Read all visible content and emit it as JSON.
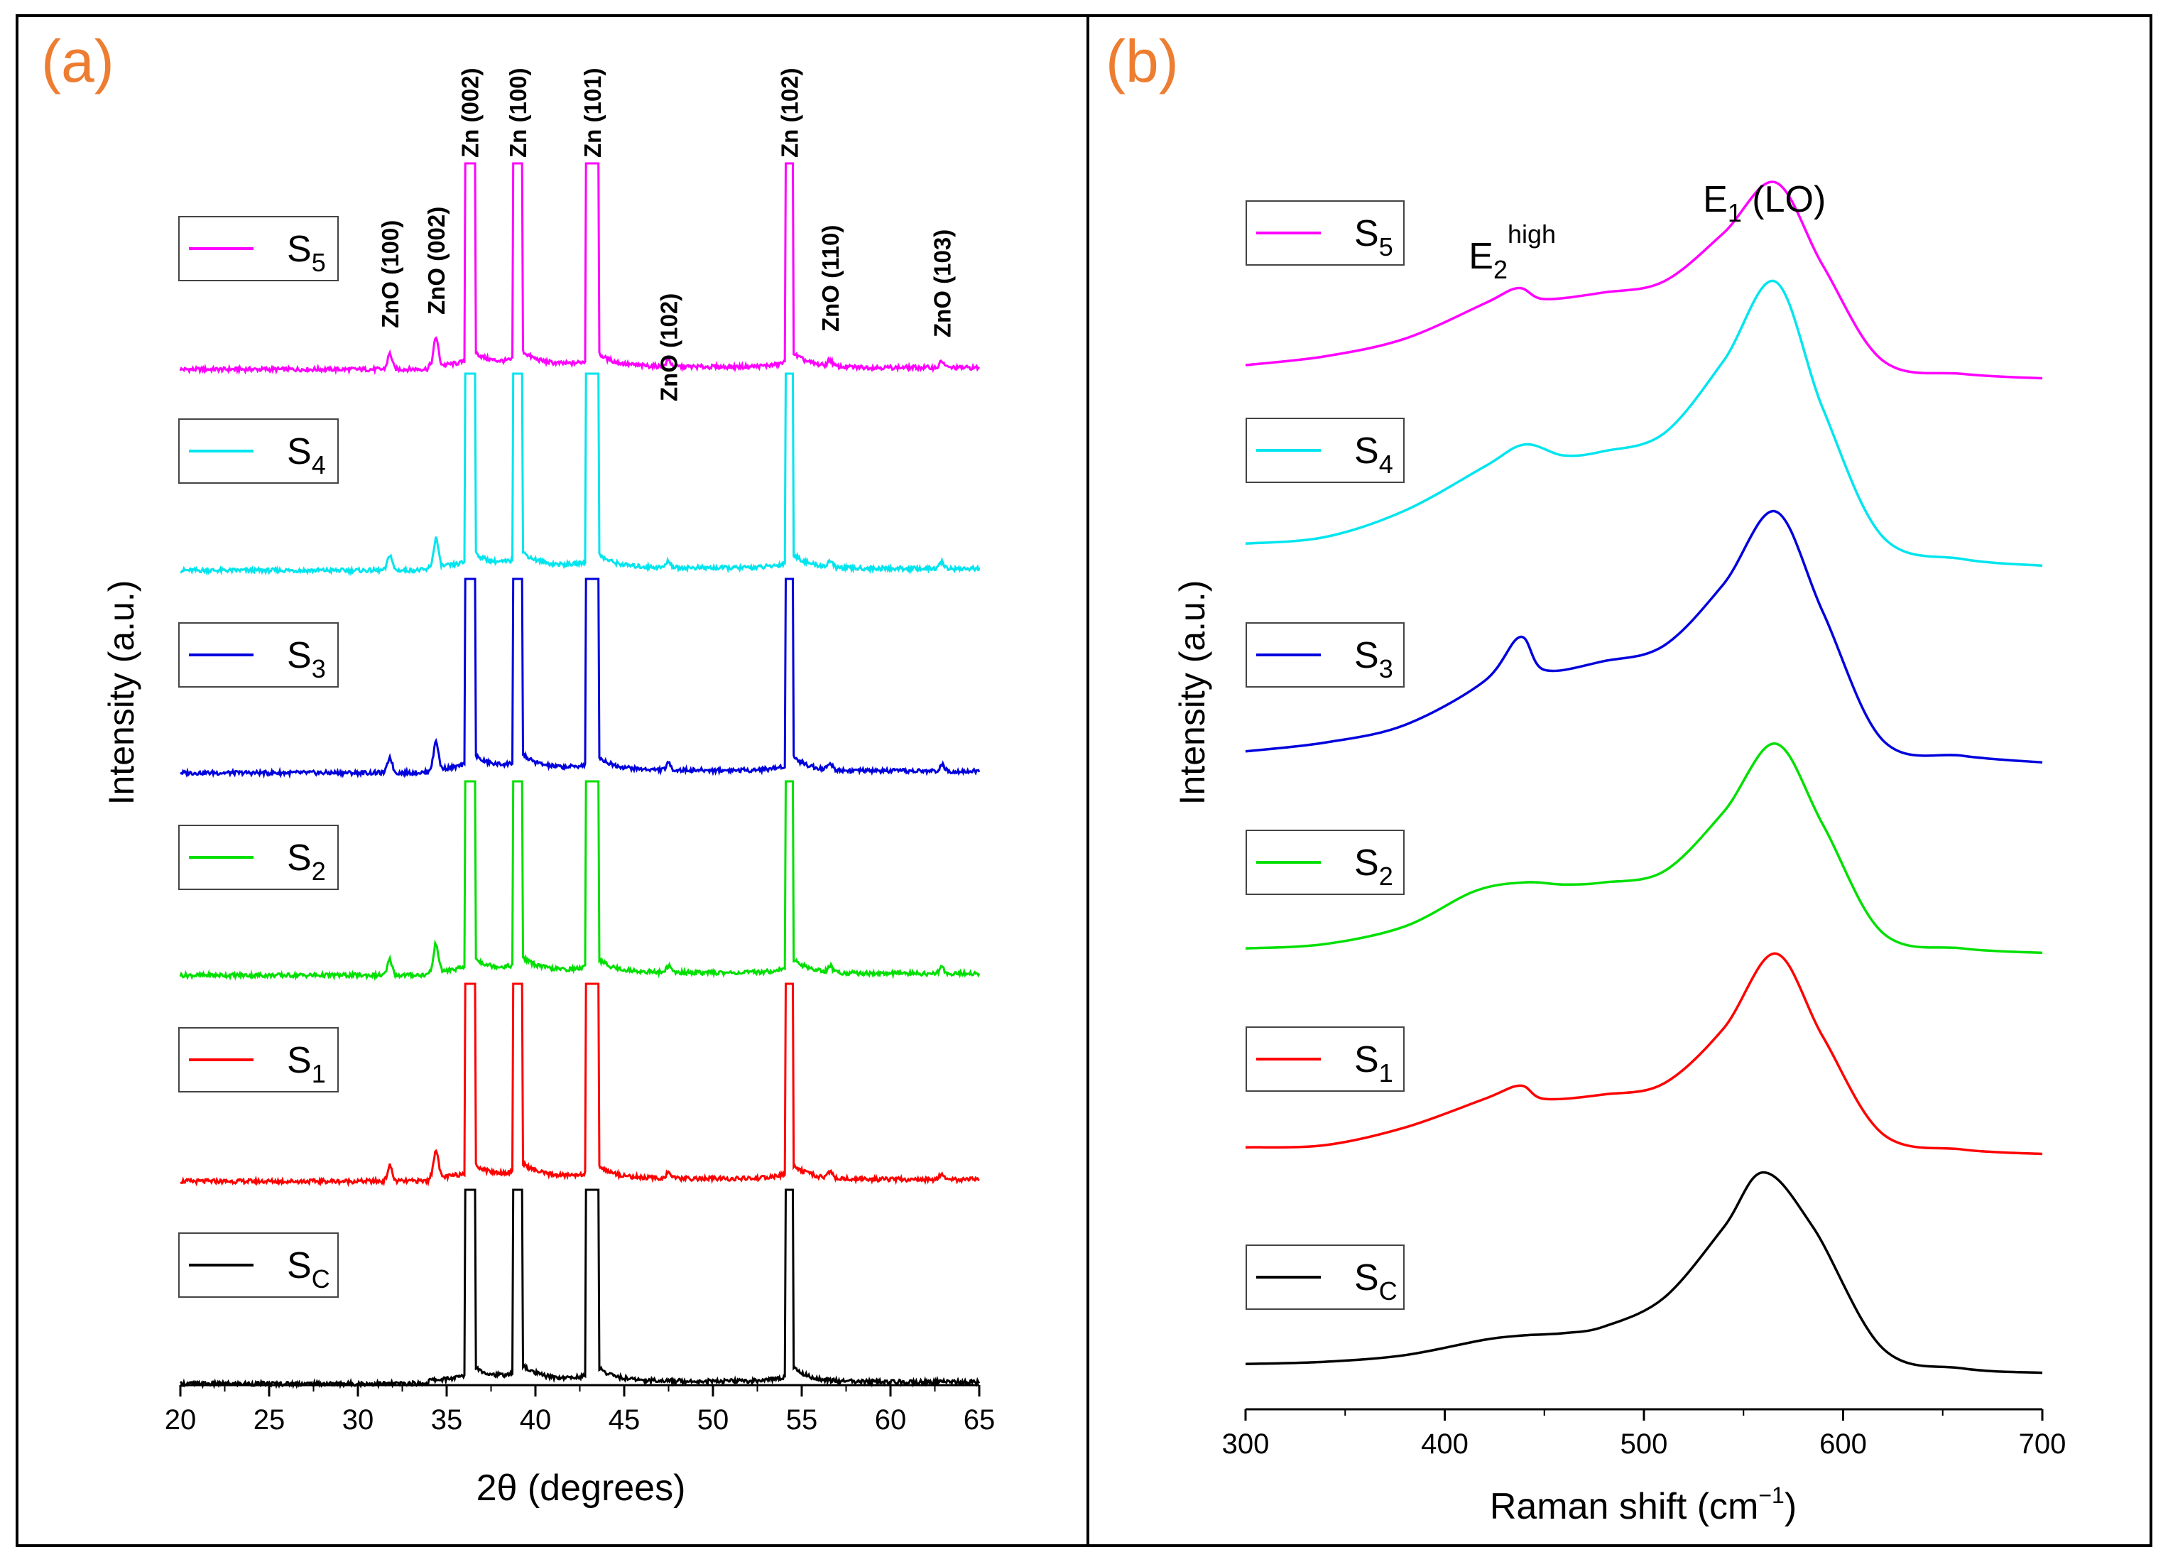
{
  "colors": {
    "S5": "#ff00ff",
    "S4": "#00e5ee",
    "S3": "#0000dd",
    "S2": "#00e000",
    "S1": "#ff0000",
    "SC": "#000000",
    "panel_label": "#ed7d31"
  },
  "chart_data": [
    {
      "type": "line",
      "panel_label": "(a)",
      "title": "",
      "xlabel": "2θ (degrees)",
      "ylabel": "Intensity (a.u.)",
      "xlim": [
        20,
        65
      ],
      "xticks": [
        "20",
        "25",
        "30",
        "35",
        "40",
        "45",
        "50",
        "55",
        "60",
        "65"
      ],
      "yticks": [],
      "grid": false,
      "legend_placement": "left of each trace",
      "series": [
        {
          "key": "S5",
          "name": "S",
          "sub": "5"
        },
        {
          "key": "S4",
          "name": "S",
          "sub": "4"
        },
        {
          "key": "S3",
          "name": "S",
          "sub": "3"
        },
        {
          "key": "S2",
          "name": "S",
          "sub": "2"
        },
        {
          "key": "S1",
          "name": "S",
          "sub": "1"
        },
        {
          "key": "SC",
          "name": "S",
          "sub": "C"
        }
      ],
      "peaks": [
        {
          "label": "ZnO (100)",
          "x": 31.8,
          "type": "ZnO"
        },
        {
          "label": "ZnO (002)",
          "x": 34.4,
          "type": "ZnO"
        },
        {
          "label": "Zn (002)",
          "x": 36.3,
          "type": "Zn"
        },
        {
          "label": "Zn (100)",
          "x": 39.0,
          "type": "Zn"
        },
        {
          "label": "Zn (101)",
          "x": 43.2,
          "type": "Zn"
        },
        {
          "label": "ZnO (102)",
          "x": 47.5,
          "type": "ZnO"
        },
        {
          "label": "Zn (102)",
          "x": 54.3,
          "type": "Zn"
        },
        {
          "label": "ZnO (110)",
          "x": 56.6,
          "type": "ZnO"
        },
        {
          "label": "ZnO (103)",
          "x": 62.9,
          "type": "ZnO"
        }
      ]
    },
    {
      "type": "line",
      "panel_label": "(b)",
      "title": "",
      "xlabel": "Raman shift (cm",
      "xlabel_sup": "−1",
      "xlabel_end": ")",
      "ylabel": "Intensity (a.u.)",
      "xlim": [
        300,
        700
      ],
      "xticks": [
        "300",
        "400",
        "500",
        "600",
        "700"
      ],
      "yticks": [],
      "grid": false,
      "legend_placement": "left of each trace",
      "annotations": [
        {
          "base": "E",
          "sub": "2",
          "sup": "high",
          "x": 437
        },
        {
          "base": "E",
          "sub": "1",
          "rest": " (LO)",
          "x": 566
        }
      ],
      "series": [
        {
          "key": "S5",
          "name": "S",
          "sub": "5",
          "x": [
            300,
            340,
            380,
            420,
            437,
            450,
            480,
            510,
            540,
            566,
            590,
            620,
            660,
            700
          ],
          "y": [
            0.1,
            0.14,
            0.22,
            0.38,
            0.45,
            0.4,
            0.43,
            0.48,
            0.7,
            0.93,
            0.55,
            0.12,
            0.06,
            0.04
          ]
        },
        {
          "key": "S4",
          "name": "S",
          "sub": "4",
          "x": [
            300,
            340,
            380,
            420,
            440,
            460,
            480,
            510,
            540,
            566,
            590,
            620,
            660,
            700
          ],
          "y": [
            0.17,
            0.2,
            0.32,
            0.52,
            0.62,
            0.57,
            0.59,
            0.67,
            1.0,
            1.36,
            0.78,
            0.2,
            0.1,
            0.07
          ]
        },
        {
          "key": "S3",
          "name": "S",
          "sub": "3",
          "x": [
            300,
            340,
            380,
            420,
            438,
            450,
            480,
            510,
            540,
            566,
            590,
            620,
            660,
            700
          ],
          "y": [
            0.12,
            0.16,
            0.24,
            0.44,
            0.64,
            0.49,
            0.53,
            0.6,
            0.88,
            1.21,
            0.75,
            0.17,
            0.1,
            0.07
          ]
        },
        {
          "key": "S2",
          "name": "S",
          "sub": "2",
          "x": [
            300,
            340,
            380,
            415,
            440,
            460,
            480,
            510,
            540,
            566,
            590,
            620,
            660,
            700
          ],
          "y": [
            0.08,
            0.1,
            0.18,
            0.34,
            0.38,
            0.37,
            0.38,
            0.43,
            0.7,
            1.01,
            0.64,
            0.15,
            0.08,
            0.06
          ]
        },
        {
          "key": "S1",
          "name": "S",
          "sub": "1",
          "x": [
            300,
            340,
            380,
            420,
            438,
            450,
            480,
            510,
            540,
            566,
            590,
            620,
            660,
            700
          ],
          "y": [
            0.08,
            0.09,
            0.17,
            0.3,
            0.36,
            0.3,
            0.32,
            0.37,
            0.62,
            0.96,
            0.58,
            0.14,
            0.07,
            0.05
          ]
        },
        {
          "key": "SC",
          "name": "S",
          "sub": "C",
          "x": [
            300,
            340,
            380,
            420,
            440,
            460,
            480,
            510,
            540,
            560,
            585,
            620,
            660,
            700
          ],
          "y": [
            0.08,
            0.09,
            0.12,
            0.19,
            0.21,
            0.22,
            0.25,
            0.38,
            0.7,
            0.95,
            0.7,
            0.15,
            0.06,
            0.04
          ]
        }
      ]
    }
  ]
}
